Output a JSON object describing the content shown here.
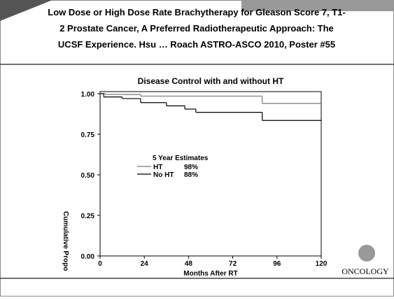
{
  "slide_title": [
    "Low Dose or High Dose Rate Brachytherapy for Gleason Score 7, T1-",
    "2 Prostate Cancer, A Preferred Radiotherapeutic Approach: The",
    "UCSF Experience.  Hsu … Roach  ASTRO-ASCO 2010, Poster #55"
  ],
  "logo": "ONCOLOGY",
  "chart_data": {
    "type": "step",
    "title": "Disease Control with and without HT",
    "x_label": "Months After RT",
    "y_label": "Cumulative Propo",
    "legend_title": "5 Year Estimates",
    "xlim": [
      0,
      120
    ],
    "xticks": [
      0,
      24,
      48,
      72,
      96,
      120
    ],
    "ylim": [
      0,
      1.03
    ],
    "yticks": [
      {
        "value": 0,
        "label": "0.00"
      },
      {
        "value": 0.25,
        "label": "0.25"
      },
      {
        "value": 0.5,
        "label": "0.50"
      },
      {
        "value": 0.75,
        "label": "0.75"
      },
      {
        "value": 1,
        "label": "1.00"
      }
    ],
    "series": [
      {
        "name": "HT",
        "estimate": "98%",
        "color": "#777777",
        "x": [
          0,
          3,
          22,
          88,
          120
        ],
        "values": [
          1.0,
          0.995,
          0.985,
          0.94,
          0.94
        ]
      },
      {
        "name": "No HT",
        "estimate": "88%",
        "color": "#000000",
        "x": [
          0,
          2,
          12,
          22,
          36,
          46,
          52,
          88,
          120
        ],
        "values": [
          1.0,
          0.98,
          0.97,
          0.945,
          0.925,
          0.905,
          0.885,
          0.835,
          0.835
        ]
      }
    ]
  }
}
